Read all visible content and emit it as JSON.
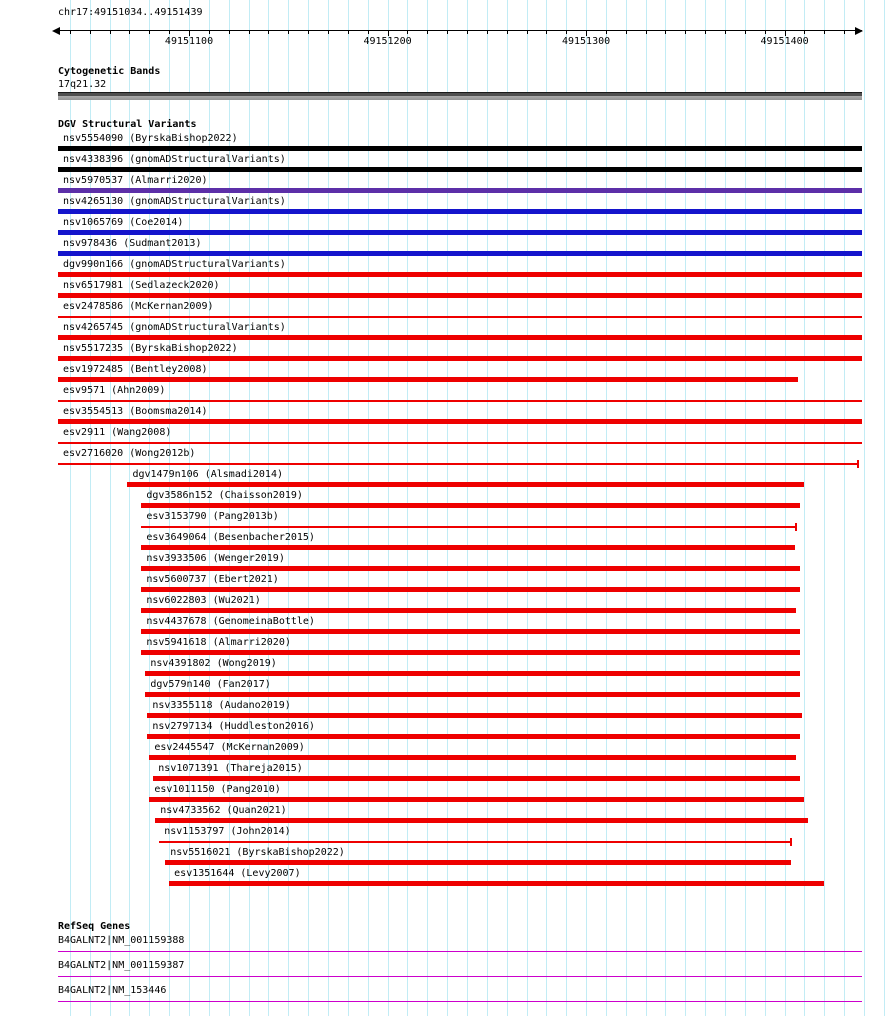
{
  "colors": {
    "grid": "#c2ecf5",
    "black": "#000000",
    "blue": "#1414cc",
    "purple": "#5c2fa8",
    "red": "#ee0000",
    "gene": "#cc00cc"
  },
  "region": {
    "title": "chr17:49151034..49151439",
    "start": 49151034,
    "end": 49151439
  },
  "ruler": {
    "major_ticks": [
      {
        "pos": 49151100,
        "label": "49151100"
      },
      {
        "pos": 49151200,
        "label": "49151200"
      },
      {
        "pos": 49151300,
        "label": "49151300"
      },
      {
        "pos": 49151400,
        "label": "49151400"
      }
    ]
  },
  "cytobands": {
    "header": "Cytogenetic Bands",
    "band": "17q21.32"
  },
  "dgv": {
    "header": "DGV Structural Variants",
    "tracks": [
      {
        "label": "nsv5554090 (ByrskaBishop2022)",
        "color": "black",
        "style": "thick",
        "start": 49151034,
        "end": 49151439
      },
      {
        "label": "nsv4338396 (gnomADStructuralVariants)",
        "color": "black",
        "style": "thick",
        "start": 49151034,
        "end": 49151439
      },
      {
        "label": "nsv5970537 (Almarri2020)",
        "color": "purple",
        "style": "thick",
        "start": 49151034,
        "end": 49151439
      },
      {
        "label": "nsv4265130 (gnomADStructuralVariants)",
        "color": "blue",
        "style": "thick",
        "start": 49151034,
        "end": 49151439
      },
      {
        "label": "nsv1065769 (Coe2014)",
        "color": "blue",
        "style": "thick",
        "start": 49151034,
        "end": 49151439
      },
      {
        "label": "nsv978436 (Sudmant2013)",
        "color": "blue",
        "style": "thick",
        "start": 49151034,
        "end": 49151439
      },
      {
        "label": "dgv990n166 (gnomADStructuralVariants)",
        "color": "red",
        "style": "thick",
        "start": 49151034,
        "end": 49151439
      },
      {
        "label": "nsv6517981 (Sedlazeck2020)",
        "color": "red",
        "style": "thick",
        "start": 49151034,
        "end": 49151439
      },
      {
        "label": "esv2478586 (McKernan2009)",
        "color": "red",
        "style": "thin",
        "start": 49151034,
        "end": 49151439
      },
      {
        "label": "nsv4265745 (gnomADStructuralVariants)",
        "color": "red",
        "style": "thick",
        "start": 49151034,
        "end": 49151439
      },
      {
        "label": "nsv5517235 (ByrskaBishop2022)",
        "color": "red",
        "style": "thick",
        "start": 49151034,
        "end": 49151439
      },
      {
        "label": "esv1972485 (Bentley2008)",
        "color": "red",
        "style": "thick",
        "start": 49151034,
        "end": 49151407
      },
      {
        "label": "esv9571 (Ahn2009)",
        "color": "red",
        "style": "thin",
        "start": 49151034,
        "end": 49151439
      },
      {
        "label": "esv3554513 (Boomsma2014)",
        "color": "red",
        "style": "thick",
        "start": 49151034,
        "end": 49151439
      },
      {
        "label": "esv2911 (Wang2008)",
        "color": "red",
        "style": "thin",
        "start": 49151034,
        "end": 49151439
      },
      {
        "label": "esv2716020 (Wong2012b)",
        "color": "red",
        "style": "thin",
        "start": 49151034,
        "end": 49151437,
        "end_tick": true
      },
      {
        "label": "dgv1479n106 (Alsmadi2014)",
        "color": "red",
        "style": "thick",
        "start": 49151069,
        "end": 49151410
      },
      {
        "label": "dgv3586n152 (Chaisson2019)",
        "color": "red",
        "style": "thick",
        "start": 49151076,
        "end": 49151408
      },
      {
        "label": "esv3153790 (Pang2013b)",
        "color": "red",
        "style": "thin",
        "start": 49151076,
        "end": 49151406,
        "end_tick": true
      },
      {
        "label": "esv3649064 (Besenbacher2015)",
        "color": "red",
        "style": "thick",
        "start": 49151076,
        "end": 49151405
      },
      {
        "label": "nsv3933506 (Wenger2019)",
        "color": "red",
        "style": "thick",
        "start": 49151076,
        "end": 49151408
      },
      {
        "label": "nsv5600737 (Ebert2021)",
        "color": "red",
        "style": "thick",
        "start": 49151076,
        "end": 49151408
      },
      {
        "label": "nsv6022803 (Wu2021)",
        "color": "red",
        "style": "thick",
        "start": 49151076,
        "end": 49151406
      },
      {
        "label": "nsv4437678 (GenomeinaBottle)",
        "color": "red",
        "style": "thick",
        "start": 49151076,
        "end": 49151408
      },
      {
        "label": "nsv5941618 (Almarri2020)",
        "color": "red",
        "style": "thick",
        "start": 49151076,
        "end": 49151408
      },
      {
        "label": "nsv4391802 (Wong2019)",
        "color": "red",
        "style": "thick",
        "start": 49151078,
        "end": 49151408
      },
      {
        "label": "dgv579n140 (Fan2017)",
        "color": "red",
        "style": "thick",
        "start": 49151078,
        "end": 49151408
      },
      {
        "label": "nsv3355118 (Audano2019)",
        "color": "red",
        "style": "thick",
        "start": 49151079,
        "end": 49151409
      },
      {
        "label": "nsv2797134 (Huddleston2016)",
        "color": "red",
        "style": "thick",
        "start": 49151079,
        "end": 49151408
      },
      {
        "label": "esv2445547 (McKernan2009)",
        "color": "red",
        "style": "thick",
        "start": 49151080,
        "end": 49151406
      },
      {
        "label": "nsv1071391 (Thareja2015)",
        "color": "red",
        "style": "thick",
        "start": 49151082,
        "end": 49151408
      },
      {
        "label": "esv1011150 (Pang2010)",
        "color": "red",
        "style": "thick",
        "start": 49151080,
        "end": 49151410
      },
      {
        "label": "nsv4733562 (Quan2021)",
        "color": "red",
        "style": "thick",
        "start": 49151083,
        "end": 49151412
      },
      {
        "label": "nsv1153797 (John2014)",
        "color": "red",
        "style": "thin",
        "start": 49151085,
        "end": 49151403,
        "end_tick": true
      },
      {
        "label": "nsv5516021 (ByrskaBishop2022)",
        "color": "red",
        "style": "thick",
        "start": 49151088,
        "end": 49151403
      },
      {
        "label": "esv1351644 (Levy2007)",
        "color": "red",
        "style": "thick",
        "start": 49151090,
        "end": 49151420
      }
    ]
  },
  "refseq": {
    "header": "RefSeq Genes",
    "genes": [
      {
        "label": "B4GALNT2|NM_001159388",
        "start": 49151034,
        "end": 49151439
      },
      {
        "label": "B4GALNT2|NM_001159387",
        "start": 49151034,
        "end": 49151439
      },
      {
        "label": "B4GALNT2|NM_153446",
        "start": 49151034,
        "end": 49151439
      }
    ]
  }
}
